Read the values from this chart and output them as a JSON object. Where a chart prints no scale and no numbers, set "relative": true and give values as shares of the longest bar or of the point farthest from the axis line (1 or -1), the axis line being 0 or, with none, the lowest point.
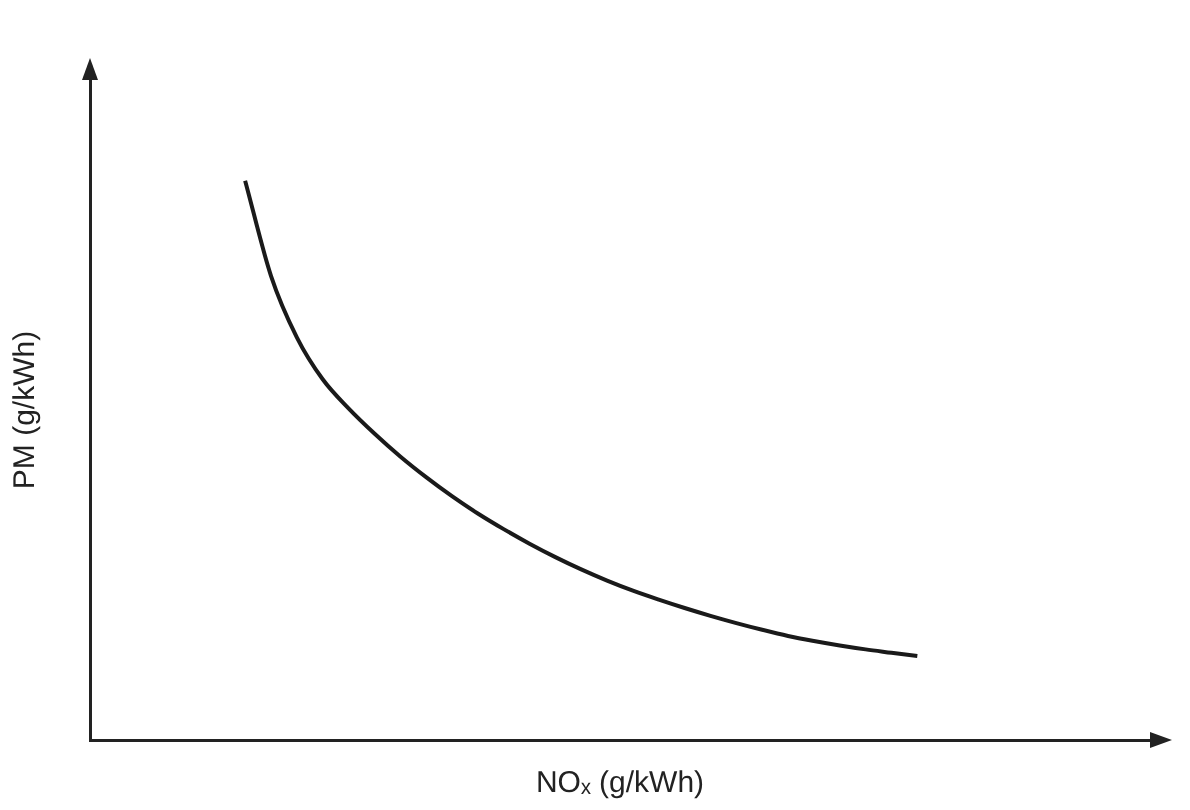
{
  "chart_data": {
    "type": "line",
    "relative": true,
    "xlabel": "NOₓ (g/kWh)",
    "ylabel": "PM (g/kWh)",
    "tick_labels": false,
    "grid": false,
    "legend": false,
    "marker": "none",
    "line_style": "solid",
    "categories": [
      null,
      null,
      null,
      null,
      null,
      null,
      null,
      null,
      null,
      null,
      null,
      null,
      null,
      null,
      null,
      null,
      null,
      null,
      null,
      null,
      null,
      null,
      null,
      null,
      null,
      null,
      null,
      null,
      null,
      null,
      null,
      null,
      null,
      null,
      null,
      null,
      null,
      null,
      null,
      null,
      null,
      null
    ],
    "series": [
      {
        "color": "#1a1a1a",
        "values": [
          null,
          null,
          null,
          null,
          null,
          null,
          1.0,
          0.83,
          0.72,
          0.645,
          0.593,
          0.548,
          0.507,
          0.47,
          0.436,
          0.405,
          0.377,
          0.351,
          0.327,
          0.305,
          0.285,
          0.267,
          0.251,
          0.236,
          0.222,
          0.209,
          0.197,
          0.186,
          0.177,
          0.169,
          0.162,
          0.156,
          0.15,
          null,
          null,
          null,
          null,
          null,
          null,
          null,
          null,
          null
        ]
      }
    ]
  }
}
